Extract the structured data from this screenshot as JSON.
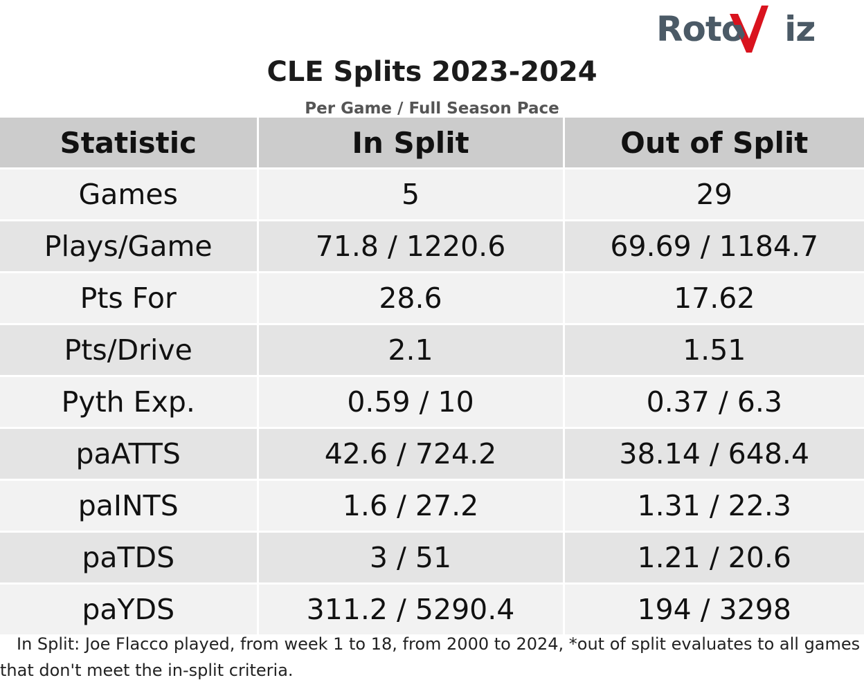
{
  "logo": {
    "text_left": "Roto",
    "text_right": "iz"
  },
  "title": "CLE Splits 2023-2024",
  "subtitle": "Per Game / Full Season Pace",
  "table": {
    "headers": [
      "Statistic",
      "In Split",
      "Out of Split"
    ],
    "rows": [
      {
        "stat": "Games",
        "in_split": "5",
        "out_split": "29"
      },
      {
        "stat": "Plays/Game",
        "in_split": "71.8 / 1220.6",
        "out_split": "69.69 / 1184.7"
      },
      {
        "stat": "Pts For",
        "in_split": "28.6",
        "out_split": "17.62"
      },
      {
        "stat": "Pts/Drive",
        "in_split": "2.1",
        "out_split": "1.51"
      },
      {
        "stat": "Pyth Exp.",
        "in_split": "0.59 / 10",
        "out_split": "0.37 / 6.3"
      },
      {
        "stat": "paATTS",
        "in_split": "42.6 / 724.2",
        "out_split": "38.14 / 648.4"
      },
      {
        "stat": "paINTS",
        "in_split": "1.6 / 27.2",
        "out_split": "1.31 / 22.3"
      },
      {
        "stat": "paTDS",
        "in_split": "3 / 51",
        "out_split": "1.21 / 20.6"
      },
      {
        "stat": "paYDS",
        "in_split": "311.2 / 5290.4",
        "out_split": "194 / 3298"
      }
    ]
  },
  "footnote": "In Split: Joe Flacco played, from week 1 to 18, from 2000 to 2024,  *out of split evaluates to all games that don't meet the in-split criteria.",
  "colors": {
    "logo_gray": "#4b5a66",
    "logo_red": "#d9131e",
    "header_bg": "#cccccc",
    "row_light": "#f2f2f2",
    "row_dark": "#e4e4e4"
  }
}
